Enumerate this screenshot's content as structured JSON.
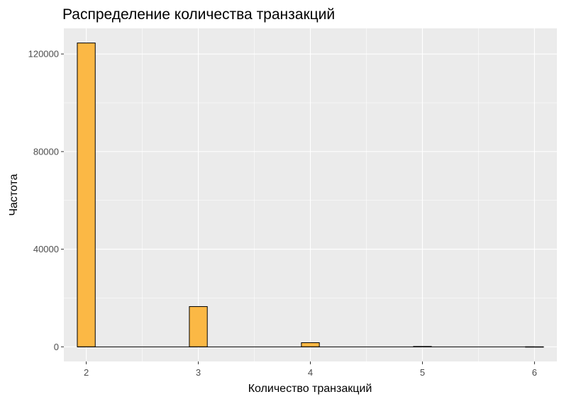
{
  "chart_data": {
    "type": "bar",
    "title": "Распределение количества транзакций",
    "xlabel": "Количество транзакций",
    "ylabel": "Частота",
    "x": [
      2,
      3,
      4,
      5,
      6
    ],
    "values": [
      124500,
      16500,
      1700,
      150,
      20
    ],
    "xlim": [
      1.8,
      6.2
    ],
    "ylim": [
      -6000,
      130500
    ],
    "x_ticks": [
      "2",
      "3",
      "4",
      "5",
      "6"
    ],
    "y_ticks": [
      "0",
      "40000",
      "80000",
      "120000"
    ],
    "grid": true,
    "legend": "none",
    "colors": {
      "fill": "#FBB845",
      "stroke": "#000000",
      "panel": "#EBEBEB",
      "grid_major": "#FFFFFF"
    }
  }
}
